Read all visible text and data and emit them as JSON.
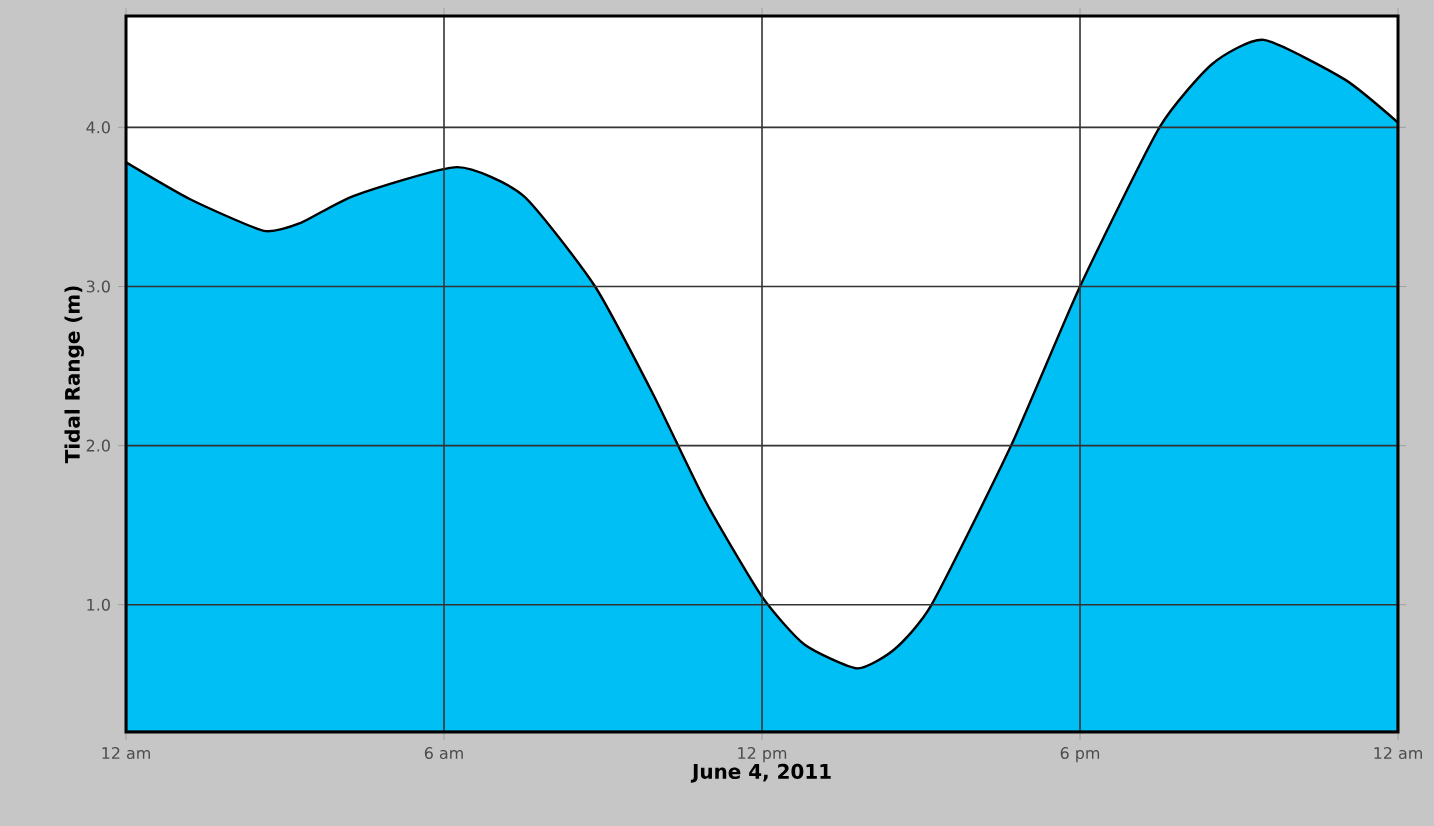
{
  "chart_data": {
    "type": "area",
    "xlabel": "June 4, 2011",
    "ylabel": "Tidal Range (m)",
    "x": [
      "2011-06-04T00:00",
      "2011-06-04T01:12",
      "2011-06-04T02:36",
      "2011-06-04T03:18",
      "2011-06-04T04:18",
      "2011-06-04T06:15",
      "2011-06-04T07:30",
      "2011-06-04T08:51",
      "2011-06-04T09:57",
      "2011-06-04T10:56",
      "2011-06-04T12:00",
      "2011-06-04T12:48",
      "2011-06-04T13:48",
      "2011-06-04T14:30",
      "2011-06-04T15:12",
      "2011-06-04T16:42",
      "2011-06-04T18:00",
      "2011-06-04T19:30",
      "2011-06-04T20:30",
      "2011-06-04T21:28",
      "2011-06-04T23:00",
      "2011-06-05T00:00"
    ],
    "values": [
      3.78,
      3.55,
      3.35,
      3.4,
      3.57,
      3.75,
      3.57,
      3.0,
      2.32,
      1.65,
      1.05,
      0.75,
      0.6,
      0.72,
      1.0,
      2.0,
      3.0,
      4.0,
      4.4,
      4.55,
      4.3,
      4.03
    ],
    "color": "#00bff5",
    "xlim": [
      "2011-06-04T00:00",
      "2011-06-05T00:00"
    ],
    "ylim": [
      0.2,
      4.7
    ],
    "xticks": [
      {
        "value": "2011-06-04T00:00",
        "label": "12 am"
      },
      {
        "value": "2011-06-04T06:00",
        "label": "6 am"
      },
      {
        "value": "2011-06-04T12:00",
        "label": "12 pm"
      },
      {
        "value": "2011-06-04T18:00",
        "label": "6 pm"
      },
      {
        "value": "2011-06-05T00:00",
        "label": "12 am"
      }
    ],
    "yticks": [
      {
        "value": 1,
        "label": "1.0"
      },
      {
        "value": 2,
        "label": "2.0"
      },
      {
        "value": 3,
        "label": "3.0"
      },
      {
        "value": 4,
        "label": "4.0"
      }
    ],
    "grid": true
  }
}
